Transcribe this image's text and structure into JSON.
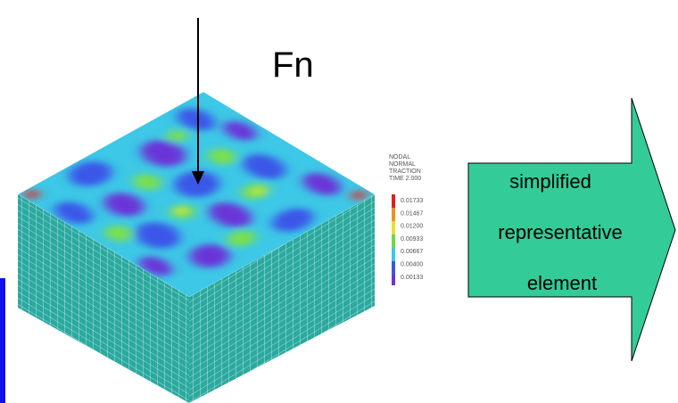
{
  "force_label": "Fn",
  "legend": {
    "title": [
      "NODAL",
      "NORMAL",
      "TRACTION",
      "TIME 2.000"
    ],
    "labels": [
      "0.01733",
      "0.01467",
      "0.01200",
      "0.00933",
      "0.00667",
      "0.00400",
      "0.00133"
    ]
  },
  "arrow_text": [
    "simplified",
    "representative",
    "element"
  ]
}
